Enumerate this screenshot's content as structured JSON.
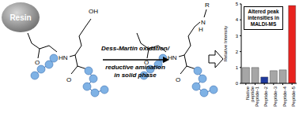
{
  "diagram": {
    "resin": "Resin",
    "hydroxyl": "OH",
    "amide_nh": "HN",
    "carbonyl_o": "O",
    "reaction": [
      "Dess-Martin oxidation/",
      "reductive amination",
      "in solid phase"
    ],
    "substituent": "R",
    "amine_n": "N",
    "amine_h": "H"
  },
  "chart_data": {
    "type": "bar",
    "title": "Altered peak intensities in MALDI-MS",
    "y_label": "Relative Intensity",
    "categories": [
      "Native peptide",
      "Peptide-1",
      "Peptide-2",
      "Peptide-3",
      "Peptide-4",
      "Peptide-5"
    ],
    "values": [
      1,
      1,
      0.4,
      0.8,
      0.85,
      4.9
    ],
    "colors": [
      "#a6a6a6",
      "#a6a6a6",
      "#1f3a9e",
      "#a6a6a6",
      "#a6a6a6",
      "#e8231f"
    ],
    "ylim": [
      0,
      5
    ],
    "yticks": [
      0,
      1,
      2,
      3,
      4,
      5
    ],
    "grid": false
  }
}
